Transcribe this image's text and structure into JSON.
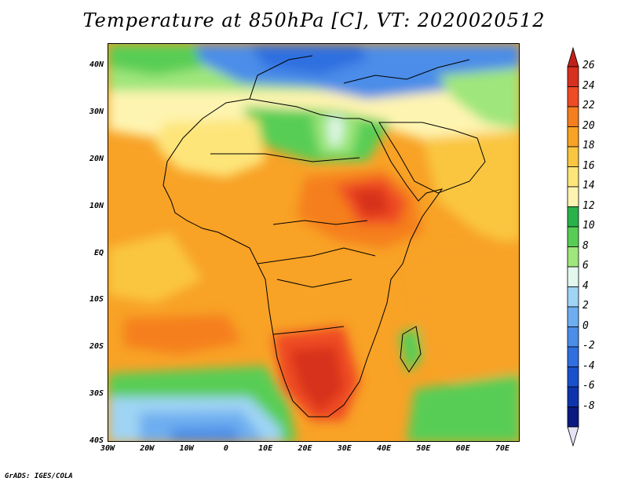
{
  "title": "Temperature at 850hPa [C], VT: 2020020512",
  "credit": "GrADS: IGES/COLA",
  "lat_ticks": [
    "40N",
    "30N",
    "20N",
    "10N",
    "EQ",
    "10S",
    "20S",
    "30S",
    "40S"
  ],
  "lon_ticks": [
    "30W",
    "20W",
    "10W",
    "0",
    "10E",
    "20E",
    "30E",
    "40E",
    "50E",
    "60E",
    "70E"
  ],
  "colorbar": {
    "labels": [
      "26",
      "24",
      "22",
      "20",
      "18",
      "16",
      "14",
      "12",
      "10",
      "8",
      "6",
      "4",
      "2",
      "0",
      "-2",
      "-4",
      "-6",
      "-8"
    ],
    "colors": [
      "#d7301f",
      "#ef4b24",
      "#f57f1f",
      "#f8a226",
      "#fac640",
      "#fde57a",
      "#fef4b1",
      "#2ab24a",
      "#58cd55",
      "#9fe67c",
      "#e2f7ed",
      "#9fd4f4",
      "#6eaef0",
      "#4b8de8",
      "#2f6fe0",
      "#1a50cc",
      "#0e34ad",
      "#0a1a80"
    ]
  }
}
